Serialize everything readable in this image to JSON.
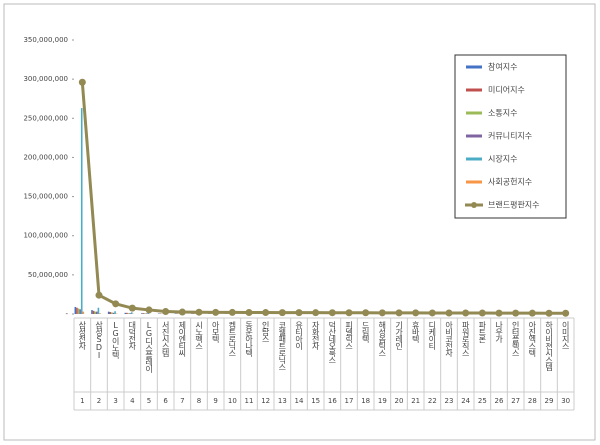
{
  "chart_data": {
    "type": "bar_line",
    "categories": [
      "삼성전자",
      "삼성SDI",
      "LG이노텍",
      "대덕전자",
      "LG디스플레이",
      "서진시스템",
      "제이엔티씨",
      "시노펙스",
      "아모텍",
      "켐트로닉스",
      "동운아나텍",
      "인탑스",
      "코웰패트로닉스",
      "유티아이",
      "자화전자",
      "덕산네오룩스",
      "피델릭스",
      "드림텍",
      "해성옵틱스",
      "기가레인",
      "휴바텍",
      "디케이티",
      "아비코전자",
      "파워로직스",
      "파트론",
      "나우가",
      "인터플렉스",
      "아진엑스텍",
      "하이비젼시스템",
      "이미지스"
    ],
    "ranks": [
      1,
      2,
      3,
      4,
      5,
      6,
      7,
      8,
      9,
      10,
      11,
      12,
      13,
      14,
      15,
      16,
      17,
      18,
      19,
      20,
      21,
      22,
      23,
      24,
      25,
      26,
      27,
      28,
      29,
      30
    ],
    "series": [
      {
        "name": "참여지수",
        "color": "#4472c4",
        "values": [
          9000000,
          5000000,
          3000000,
          1500000,
          1000000,
          600000,
          500000,
          460000,
          420000,
          400000,
          380000,
          370000,
          360000,
          350000,
          340000,
          330000,
          320000,
          310000,
          300000,
          290000,
          280000,
          270000,
          260000,
          250000,
          240000,
          230000,
          220000,
          210000,
          200000,
          190000
        ]
      },
      {
        "name": "미디어지수",
        "color": "#c0504d",
        "values": [
          8000000,
          4000000,
          2500000,
          1500000,
          1000000,
          600000,
          500000,
          460000,
          420000,
          400000,
          380000,
          370000,
          360000,
          350000,
          340000,
          330000,
          320000,
          310000,
          300000,
          290000,
          280000,
          270000,
          260000,
          250000,
          240000,
          230000,
          220000,
          210000,
          200000,
          190000
        ]
      },
      {
        "name": "소통지수",
        "color": "#9bbb59",
        "values": [
          7000000,
          3000000,
          2000000,
          1000000,
          800000,
          500000,
          375000,
          345000,
          315000,
          300000,
          285000,
          277500,
          270000,
          262500,
          255000,
          247500,
          240000,
          232500,
          225000,
          217500,
          210000,
          202500,
          195000,
          187500,
          180000,
          172500,
          165000,
          157500,
          150000,
          142500
        ]
      },
      {
        "name": "커뮤니티지수",
        "color": "#8064a2",
        "values": [
          6000000,
          3000000,
          1500000,
          1000000,
          700000,
          400000,
          375000,
          345000,
          315000,
          300000,
          285000,
          277500,
          270000,
          262500,
          255000,
          247500,
          240000,
          232500,
          225000,
          217500,
          210000,
          202500,
          195000,
          187500,
          180000,
          172500,
          165000,
          157500,
          150000,
          142500
        ]
      },
      {
        "name": "시장지수",
        "color": "#4bacc6",
        "values": [
          263000000,
          8000000,
          3500000,
          2200000,
          1500000,
          1000000,
          625000,
          575000,
          525000,
          500000,
          475000,
          462500,
          450000,
          437500,
          425000,
          412500,
          400000,
          387500,
          375000,
          362500,
          350000,
          337500,
          325000,
          312500,
          300000,
          287500,
          275000,
          262500,
          250000,
          237500
        ]
      },
      {
        "name": "사회공헌지수",
        "color": "#f79646",
        "values": [
          3000000,
          1000000,
          500000,
          300000,
          200000,
          100000,
          125000,
          115000,
          105000,
          100000,
          95000,
          92500,
          90000,
          87500,
          85000,
          82500,
          80000,
          77500,
          75000,
          72500,
          70000,
          67500,
          65000,
          62500,
          60000,
          57500,
          55000,
          52500,
          50000,
          47500
        ]
      },
      {
        "name": "브랜드평판지수",
        "color": "#938953",
        "line": true,
        "values": [
          296000000,
          24000000,
          13000000,
          7500000,
          5200000,
          3200000,
          2500000,
          2300000,
          2100000,
          2000000,
          1900000,
          1850000,
          1800000,
          1750000,
          1700000,
          1650000,
          1600000,
          1550000,
          1500000,
          1450000,
          1400000,
          1350000,
          1300000,
          1250000,
          1200000,
          1150000,
          1100000,
          1050000,
          1000000,
          950000
        ]
      }
    ],
    "ylim": [
      0,
      350000000
    ],
    "yticks": [
      {
        "value": 0,
        "label": "-"
      },
      {
        "value": 50000000,
        "label": "50,000,000"
      },
      {
        "value": 100000000,
        "label": "100,000,000"
      },
      {
        "value": 150000000,
        "label": "150,000,000"
      },
      {
        "value": 200000000,
        "label": "200,000,000"
      },
      {
        "value": 250000000,
        "label": "250,000,000"
      },
      {
        "value": 300000000,
        "label": "300,000,000"
      },
      {
        "value": 350000000,
        "label": "350,000,000"
      }
    ],
    "grid": false,
    "legend": "upper right"
  }
}
